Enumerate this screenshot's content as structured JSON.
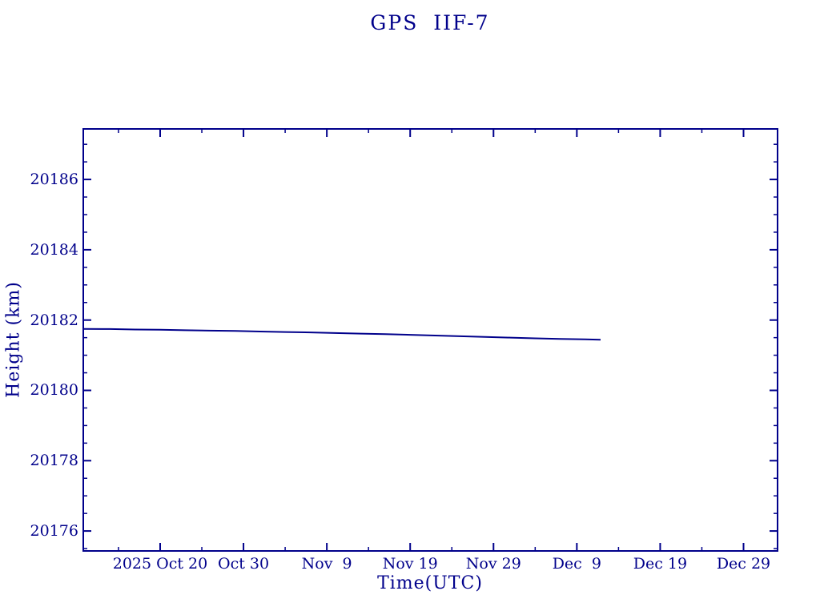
{
  "accent_color": "#00008B",
  "background_color": "#ffffff",
  "chart_data": {
    "type": "line",
    "title": "GPS IIF-7",
    "xlabel": "Time(UTC)",
    "ylabel": "Height (km)",
    "grid": false,
    "legend": "none",
    "tick_style": "inward ticks on all four box sides",
    "x_unit": "days since 2025-10-01 00:00 UTC",
    "xlim": [
      9.68,
      93.18
    ],
    "ylim": [
      20175.41,
      20187.46
    ],
    "x_major_ticks": [
      {
        "day": 19,
        "label": "2025 Oct 20"
      },
      {
        "day": 29,
        "label": "Oct 30"
      },
      {
        "day": 39,
        "label": "Nov  9"
      },
      {
        "day": 49,
        "label": "Nov 19"
      },
      {
        "day": 59,
        "label": "Nov 29"
      },
      {
        "day": 69,
        "label": "Dec  9"
      },
      {
        "day": 79,
        "label": "Dec 19"
      },
      {
        "day": 89,
        "label": "Dec 29"
      }
    ],
    "x_minor_tick_days": [
      14,
      24,
      34,
      44,
      54,
      64,
      74,
      84
    ],
    "y_major_ticks": [
      {
        "value": 20176,
        "label": "20176"
      },
      {
        "value": 20178,
        "label": "20178"
      },
      {
        "value": 20180,
        "label": "20180"
      },
      {
        "value": 20182,
        "label": "20182"
      },
      {
        "value": 20184,
        "label": "20184"
      },
      {
        "value": 20186,
        "label": "20186"
      }
    ],
    "y_minor_step": 0.5,
    "series": [
      {
        "name": "height",
        "color": "#00008B",
        "points": [
          [
            9.7,
            20181.75
          ],
          [
            13,
            20181.745
          ],
          [
            16,
            20181.73
          ],
          [
            19,
            20181.725
          ],
          [
            22,
            20181.71
          ],
          [
            25,
            20181.7
          ],
          [
            28,
            20181.69
          ],
          [
            31,
            20181.675
          ],
          [
            34,
            20181.66
          ],
          [
            37,
            20181.65
          ],
          [
            40,
            20181.63
          ],
          [
            43,
            20181.615
          ],
          [
            46,
            20181.6
          ],
          [
            49,
            20181.58
          ],
          [
            52,
            20181.56
          ],
          [
            55,
            20181.54
          ],
          [
            58,
            20181.52
          ],
          [
            61,
            20181.5
          ],
          [
            64,
            20181.48
          ],
          [
            67,
            20181.465
          ],
          [
            70,
            20181.45
          ],
          [
            71.85,
            20181.44
          ]
        ]
      }
    ]
  }
}
